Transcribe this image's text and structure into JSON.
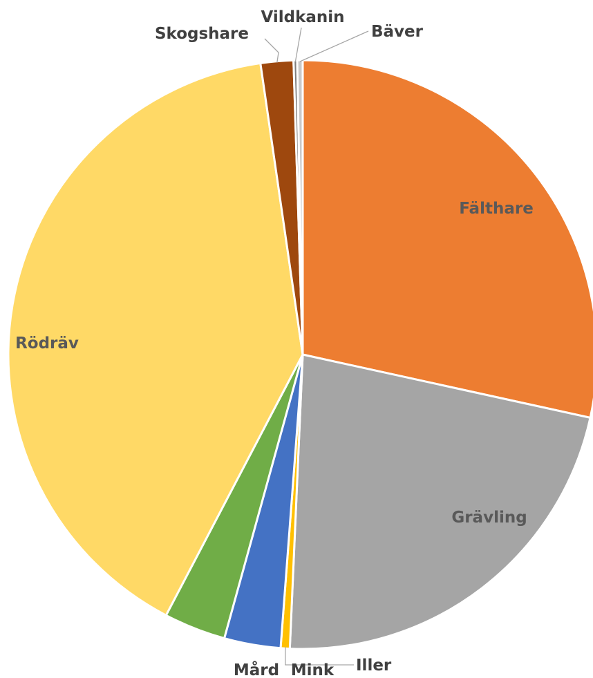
{
  "chart_data": {
    "type": "pie",
    "title": "",
    "categories": [
      "Fälthare",
      "Grävling",
      "Iller",
      "Mink",
      "Mård",
      "Rödräv",
      "Skogshare",
      "Vildkanin",
      "Bäver"
    ],
    "values": [
      28.5,
      22.3,
      0.5,
      3.1,
      3.4,
      40.1,
      1.8,
      0.2,
      0.3
    ],
    "colors": [
      "#ED7D31",
      "#A5A5A5",
      "#FFC000",
      "#4472C4",
      "#70AD47",
      "#FFD966",
      "#9E480E",
      "#7F7F7F",
      "#C9C9C9"
    ],
    "legend": "none",
    "start_angle_deg": 0,
    "direction": "clockwise"
  }
}
